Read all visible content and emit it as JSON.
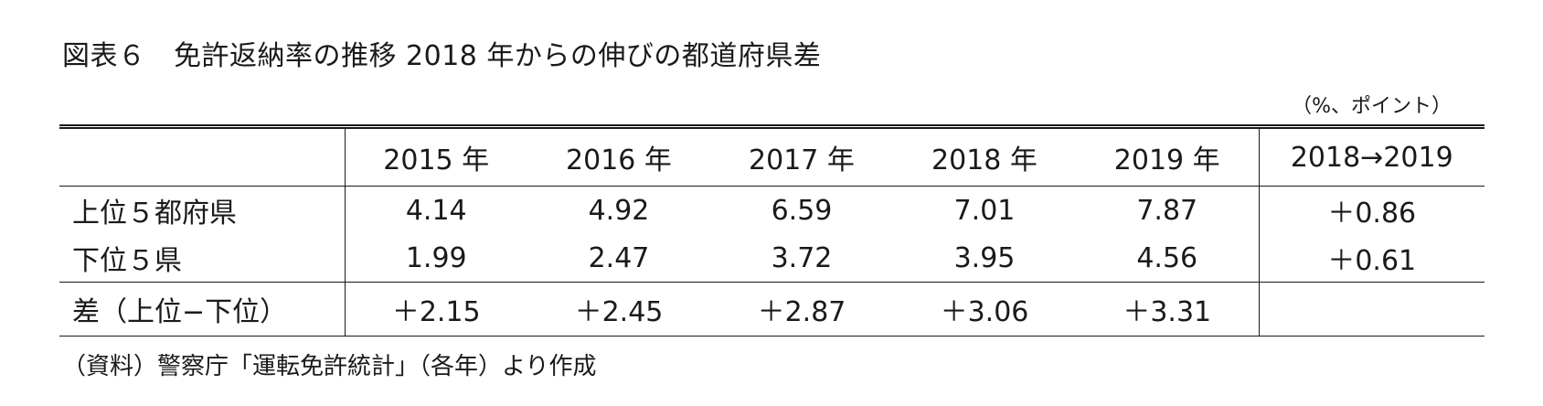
{
  "title": "図表６　免許返納率の推移 2018 年からの伸びの都道府県差",
  "unit": "（%、ポイント）",
  "table": {
    "headers": [
      "",
      "2015 年",
      "2016 年",
      "2017 年",
      "2018 年",
      "2019 年",
      "2018→2019"
    ],
    "rows": [
      {
        "label": "上位５都府県",
        "values": [
          "4.14",
          "4.92",
          "6.59",
          "7.01",
          "7.87"
        ],
        "change": "＋0.86"
      },
      {
        "label": "下位５県",
        "values": [
          "1.99",
          "2.47",
          "3.72",
          "3.95",
          "4.56"
        ],
        "change": "＋0.61"
      },
      {
        "label": "差（上位−下位）",
        "values": [
          "＋2.15",
          "＋2.45",
          "＋2.87",
          "＋3.06",
          "＋3.31"
        ],
        "change": ""
      }
    ]
  },
  "source": "（資料）警察庁「運転免許統計」（各年）より作成"
}
